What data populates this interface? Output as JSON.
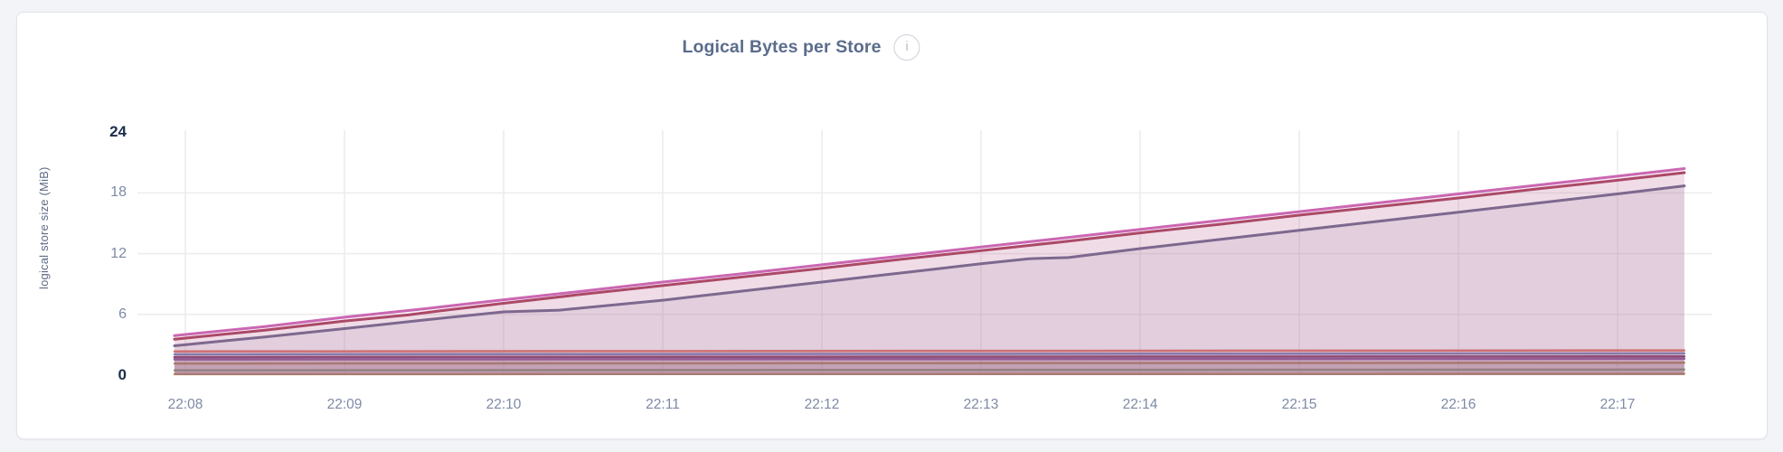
{
  "header": {
    "title": "Logical Bytes per Store",
    "info_icon_glyph": "i"
  },
  "chart_data": {
    "type": "area",
    "title": "Logical Bytes per Store",
    "ylabel": "logical store size (MiB)",
    "xlabel": "",
    "ylim": [
      0,
      24
    ],
    "yticks": [
      24,
      18,
      12,
      6,
      0
    ],
    "ytick_gridlines": [
      18,
      12,
      6
    ],
    "xticks": [
      "22:08",
      "22:09",
      "22:10",
      "22:11",
      "22:12",
      "22:13",
      "22:14",
      "22:15",
      "22:16",
      "22:17"
    ],
    "x_unit": "minutes relative to 22:08",
    "x_domain": [
      -0.07,
      9.42
    ],
    "grid": true,
    "legend_position": "none",
    "colors": {
      "title": "#5b6c8c",
      "axis_label": "#5f6c87",
      "tick": "#7d8aa6",
      "tick_strong": "#1b2d4e",
      "gridline": "#ececee",
      "card_background": "#ffffff",
      "page_background": "#f3f4f8"
    },
    "series": [
      {
        "id": "store-10",
        "color": "#c39a52",
        "points": [
          [
            -0.07,
            0.1
          ],
          [
            9.42,
            0.13
          ]
        ]
      },
      {
        "id": "store-9",
        "color": "#86ad80",
        "points": [
          [
            -0.07,
            0.48
          ],
          [
            9.42,
            0.55
          ]
        ]
      },
      {
        "id": "store-8",
        "color": "#bb9857",
        "points": [
          [
            -0.07,
            1.15
          ],
          [
            9.42,
            1.22
          ]
        ]
      },
      {
        "id": "store-7",
        "color": "#8a5ba4",
        "points": [
          [
            -0.07,
            1.55
          ],
          [
            9.42,
            1.62
          ]
        ]
      },
      {
        "id": "store-6",
        "color": "#7d3a63",
        "points": [
          [
            -0.07,
            1.78
          ],
          [
            9.42,
            1.86
          ]
        ]
      },
      {
        "id": "store-5",
        "color": "#7587c4",
        "points": [
          [
            -0.07,
            2.05
          ],
          [
            9.42,
            2.15
          ]
        ]
      },
      {
        "id": "store-4",
        "color": "#e17a68",
        "points": [
          [
            -0.07,
            2.35
          ],
          [
            9.42,
            2.45
          ]
        ]
      },
      {
        "id": "store-3",
        "color": "#6f6e90",
        "points": [
          [
            -0.07,
            2.9
          ],
          [
            0.5,
            3.78
          ],
          [
            1,
            4.6
          ],
          [
            1.5,
            5.45
          ],
          [
            2,
            6.25
          ],
          [
            2.35,
            6.42
          ],
          [
            3,
            7.4
          ],
          [
            3.5,
            8.3
          ],
          [
            4,
            9.2
          ],
          [
            4.5,
            10.1
          ],
          [
            5,
            11.0
          ],
          [
            5.3,
            11.5
          ],
          [
            5.55,
            11.62
          ],
          [
            6,
            12.5
          ],
          [
            6.5,
            13.4
          ],
          [
            7,
            14.3
          ],
          [
            7.5,
            15.2
          ],
          [
            8,
            16.1
          ],
          [
            8.5,
            17.0
          ],
          [
            9,
            17.9
          ],
          [
            9.42,
            18.7
          ]
        ]
      },
      {
        "id": "store-2",
        "color": "#a8465e",
        "points": [
          [
            -0.07,
            3.55
          ],
          [
            0.5,
            4.45
          ],
          [
            1,
            5.35
          ],
          [
            1.4,
            5.95
          ],
          [
            1.6,
            6.35
          ],
          [
            2,
            7.1
          ],
          [
            2.5,
            8.0
          ],
          [
            3,
            8.85
          ],
          [
            3.5,
            9.7
          ],
          [
            4,
            10.55
          ],
          [
            4.5,
            11.45
          ],
          [
            5,
            12.3
          ],
          [
            5.5,
            13.15
          ],
          [
            6,
            14.05
          ],
          [
            6.5,
            14.9
          ],
          [
            7,
            15.8
          ],
          [
            7.5,
            16.65
          ],
          [
            8,
            17.5
          ],
          [
            8.5,
            18.4
          ],
          [
            9,
            19.25
          ],
          [
            9.42,
            20.0
          ]
        ]
      },
      {
        "id": "store-1",
        "color": "#cb67b2",
        "points": [
          [
            -0.07,
            3.9
          ],
          [
            0.5,
            4.8
          ],
          [
            1,
            5.72
          ],
          [
            1.5,
            6.55
          ],
          [
            2,
            7.45
          ],
          [
            2.5,
            8.3
          ],
          [
            3,
            9.2
          ],
          [
            3.5,
            10.02
          ],
          [
            4,
            10.9
          ],
          [
            4.5,
            11.78
          ],
          [
            5,
            12.65
          ],
          [
            5.5,
            13.52
          ],
          [
            6,
            14.4
          ],
          [
            6.5,
            15.28
          ],
          [
            7,
            16.15
          ],
          [
            7.5,
            17.02
          ],
          [
            8,
            17.9
          ],
          [
            8.5,
            18.78
          ],
          [
            9,
            19.65
          ],
          [
            9.42,
            20.4
          ]
        ]
      }
    ]
  }
}
